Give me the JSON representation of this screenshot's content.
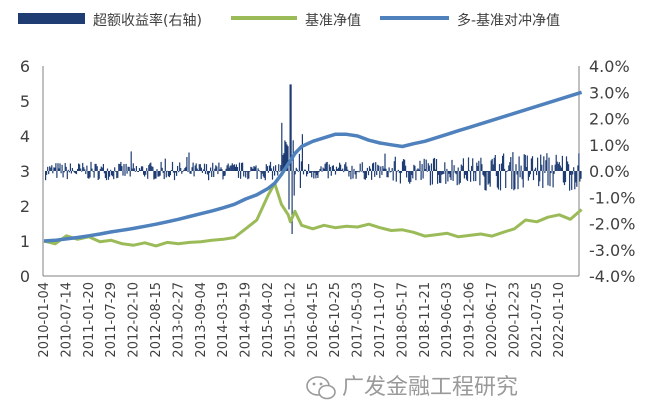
{
  "chart_data": {
    "type": "line",
    "title": "",
    "xlabel": "",
    "ylabel": "",
    "ylim": [
      0,
      6
    ],
    "y_ticks": [
      0,
      1,
      2,
      3,
      4,
      5,
      6
    ],
    "y2lim": [
      -4.0,
      4.0
    ],
    "y2_ticks": [
      "4.0%",
      "3.0%",
      "2.0%",
      "1.0%",
      "0.0%",
      "-1.0%",
      "-2.0%",
      "-3.0%",
      "-4.0%"
    ],
    "x_tick_labels": [
      "2010-01-04",
      "2010-07-14",
      "2011-01-20",
      "2011-07-29",
      "2012-02-10",
      "2012-08-15",
      "2013-02-27",
      "2013-09-04",
      "2014-03-19",
      "2014-09-19",
      "2015-04-02",
      "2015-10-12",
      "2016-04-15",
      "2016-10-25",
      "2017-05-03",
      "2017-11-07",
      "2018-05-17",
      "2018-11-21",
      "2019-06-03",
      "2019-12-06",
      "2020-06-17",
      "2020-12-23",
      "2021-07-05",
      "2022-01-10"
    ],
    "grid": false,
    "legend_position": "top",
    "series": [
      {
        "name": "超额收益率(右轴)",
        "type": "bar",
        "axis": "right",
        "color": "#1f3d73",
        "note_unit": "percent"
      },
      {
        "name": "基准净值",
        "type": "line",
        "axis": "left",
        "color": "#9bbb59",
        "x": [
          0,
          0.5,
          1,
          1.5,
          2,
          2.5,
          3,
          3.5,
          4,
          4.5,
          5,
          5.5,
          6,
          6.5,
          7,
          7.5,
          8,
          8.5,
          9,
          9.5,
          10,
          10.3,
          10.6,
          10.9,
          11.0,
          11.2,
          11.5,
          12,
          12.5,
          13,
          13.5,
          14,
          14.5,
          15,
          15.5,
          16,
          16.5,
          17,
          17.5,
          18,
          18.5,
          19,
          19.5,
          20,
          20.5,
          21,
          21.5,
          22,
          22.5,
          23,
          23.5,
          24
        ],
        "values": [
          1.0,
          0.92,
          1.15,
          1.05,
          1.12,
          0.98,
          1.02,
          0.92,
          0.88,
          0.95,
          0.86,
          0.96,
          0.92,
          0.96,
          0.98,
          1.02,
          1.05,
          1.1,
          1.35,
          1.6,
          2.3,
          2.65,
          2.05,
          1.75,
          1.55,
          1.85,
          1.45,
          1.35,
          1.45,
          1.38,
          1.42,
          1.4,
          1.48,
          1.38,
          1.3,
          1.32,
          1.25,
          1.14,
          1.18,
          1.22,
          1.12,
          1.16,
          1.2,
          1.14,
          1.25,
          1.35,
          1.6,
          1.55,
          1.68,
          1.75,
          1.62,
          1.9
        ]
      },
      {
        "name": "多-基准对冲净值",
        "type": "line",
        "axis": "left",
        "color": "#4f81bd",
        "x": [
          0,
          0.5,
          1,
          1.5,
          2,
          2.5,
          3,
          3.5,
          4,
          4.5,
          5,
          5.5,
          6,
          6.5,
          7,
          7.5,
          8,
          8.5,
          9,
          9.5,
          10,
          10.3,
          10.6,
          10.9,
          11.2,
          11.5,
          12,
          12.5,
          13,
          13.5,
          14,
          14.5,
          15,
          15.5,
          16,
          16.5,
          17,
          17.5,
          18,
          18.5,
          19,
          19.5,
          20,
          20.5,
          21,
          21.5,
          22,
          22.5,
          23,
          23.5,
          24
        ],
        "values": [
          1.0,
          1.02,
          1.06,
          1.1,
          1.15,
          1.2,
          1.26,
          1.31,
          1.36,
          1.42,
          1.48,
          1.55,
          1.62,
          1.7,
          1.78,
          1.86,
          1.95,
          2.05,
          2.2,
          2.32,
          2.5,
          2.65,
          2.9,
          3.2,
          3.5,
          3.7,
          3.85,
          3.95,
          4.05,
          4.05,
          4.0,
          3.88,
          3.8,
          3.75,
          3.7,
          3.78,
          3.85,
          3.95,
          4.05,
          4.15,
          4.25,
          4.35,
          4.45,
          4.55,
          4.65,
          4.75,
          4.85,
          4.95,
          5.05,
          5.15,
          5.25
        ]
      }
    ]
  },
  "watermark": {
    "icon": "wechat-icon",
    "text": "广发金融工程研究"
  }
}
